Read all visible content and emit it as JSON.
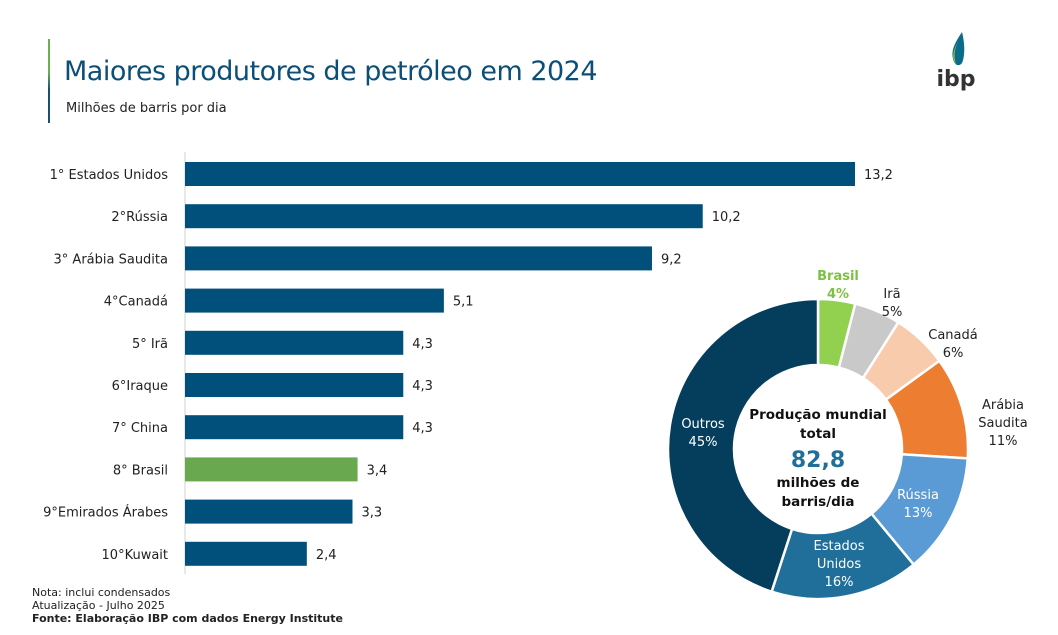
{
  "header": {
    "title": "Maiores produtores de petróleo em 2024",
    "subtitle": "Milhões de barris por dia",
    "logo_text": "ibp"
  },
  "colors": {
    "bar": "#00507b",
    "bar_highlight": "#6aa84f",
    "title": "#0b4f79"
  },
  "chart_data": [
    {
      "type": "bar",
      "orientation": "horizontal",
      "categories": [
        "1° Estados Unidos",
        "2°Rússia",
        "3° Arábia Saudita",
        "4°Canadá",
        "5° Irã",
        "6°Iraque",
        "7° China",
        "8° Brasil",
        "9°Emirados Árabes",
        "10°Kuwait"
      ],
      "values": [
        13.2,
        10.2,
        9.2,
        5.1,
        4.3,
        4.3,
        4.3,
        3.4,
        3.3,
        2.4
      ],
      "value_labels": [
        "13,2",
        "10,2",
        "9,2",
        "5,1",
        "4,3",
        "4,3",
        "4,3",
        "3,4",
        "3,3",
        "2,4"
      ],
      "highlight": "8° Brasil",
      "grid": false
    },
    {
      "type": "pie",
      "style": "donut",
      "slices": [
        {
          "label": "Brasil",
          "value": 4,
          "pct": "4%",
          "color": "#92d050"
        },
        {
          "label": "Irã",
          "value": 5,
          "pct": "5%",
          "color": "#c9c9c9"
        },
        {
          "label": "Canadá",
          "value": 6,
          "pct": "6%",
          "color": "#f8cbad"
        },
        {
          "label": "Arábia Saudita",
          "value": 11,
          "pct": "11%",
          "color": "#ed7d31"
        },
        {
          "label": "Rússia",
          "value": 13,
          "pct": "13%",
          "color": "#5b9bd5"
        },
        {
          "label": "Estados Unidos",
          "value": 16,
          "pct": "16%",
          "color": "#1f6f9a"
        },
        {
          "label": "Outros",
          "value": 45,
          "pct": "45%",
          "color": "#053d5c"
        }
      ],
      "center": {
        "line1": "Produção mundial",
        "line2": "total",
        "value": "82,8",
        "line3": "milhões de",
        "line4": "barris/dia",
        "value_color": "#1f6f9a"
      }
    }
  ],
  "footer": {
    "note": "Nota: inclui condensados",
    "update": "Atualização - Julho 2025",
    "source": "Fonte: Elaboração IBP com dados Energy Institute"
  }
}
